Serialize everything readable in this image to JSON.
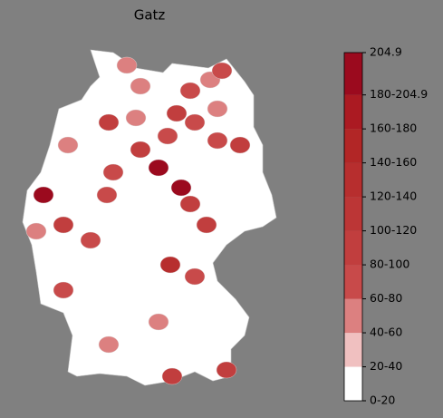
{
  "chart_data": {
    "type": "choropleth",
    "title": "Gatz",
    "clim": [
      0,
      204.9
    ],
    "cticks": [
      {
        "value": 0,
        "label": "0-20"
      },
      {
        "value": 20,
        "label": "20-40"
      },
      {
        "value": 40,
        "label": "40-60"
      },
      {
        "value": 60,
        "label": "60-80"
      },
      {
        "value": 80,
        "label": "80-100"
      },
      {
        "value": 100,
        "label": "100-120"
      },
      {
        "value": 120,
        "label": "120-140"
      },
      {
        "value": 140,
        "label": "140-160"
      },
      {
        "value": 160,
        "label": "160-180"
      },
      {
        "value": 180,
        "label": "180-204.9"
      },
      204.9
    ],
    "colors": [
      "#ffffff",
      "#f0c0c0",
      "#dc8080",
      "#c84a4a",
      "#c13e3e",
      "#bc3636",
      "#b72e2e",
      "#b22626",
      "#ab1a22",
      "#9b0a1e"
    ],
    "values": [
      50,
      70,
      40,
      40,
      60,
      90,
      40,
      80,
      70,
      204.9,
      204.9,
      80,
      70,
      60,
      180,
      80,
      60,
      60,
      90,
      80,
      120,
      60,
      40,
      40,
      60,
      80,
      80,
      80,
      40,
      60,
      40,
      40
    ]
  }
}
